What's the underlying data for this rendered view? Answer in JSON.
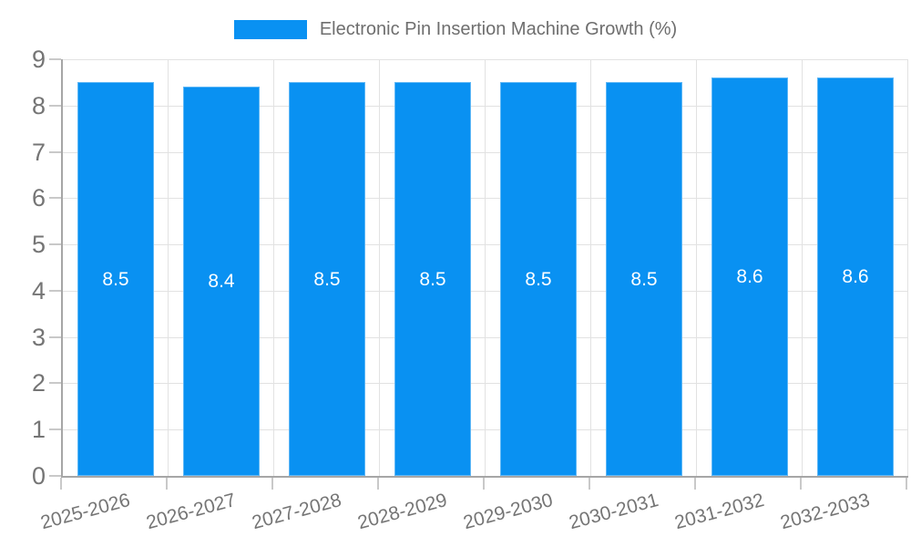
{
  "chart_data": {
    "type": "bar",
    "title": "Electronic Pin Insertion Machine Growth (%)",
    "legend": {
      "label": "Electronic Pin Insertion Machine Growth (%)",
      "position": "top-center"
    },
    "categories": [
      "2025-2026",
      "2026-2027",
      "2027-2028",
      "2028-2029",
      "2029-2030",
      "2030-2031",
      "2031-2032",
      "2032-2033"
    ],
    "series": [
      {
        "name": "Electronic Pin Insertion Machine Growth (%)",
        "values": [
          8.5,
          8.4,
          8.5,
          8.5,
          8.5,
          8.5,
          8.6,
          8.6
        ]
      }
    ],
    "xlabel": "",
    "ylabel": "",
    "ylim": [
      0,
      9
    ],
    "y_ticks": [
      0,
      1,
      2,
      3,
      4,
      5,
      6,
      7,
      8,
      9
    ],
    "grid": true,
    "value_labels_shown": true,
    "colors": {
      "bar": "#0991F2",
      "bar_value_text": "#FFFFFF",
      "gridline": "#E2E2E2",
      "axis_line": "#A6A6A6",
      "tick_mark": "#C9C9C9",
      "tick_label_text": "#757575",
      "legend_text": "#6E6E6E",
      "background": "#FFFFFF"
    }
  }
}
